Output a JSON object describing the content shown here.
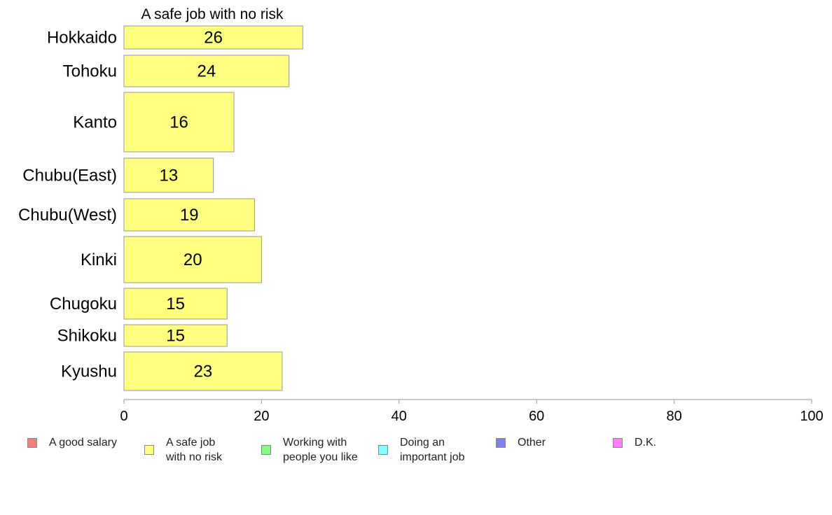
{
  "chart_data": {
    "type": "bar",
    "orientation": "horizontal",
    "title": "A safe job with no risk",
    "categories": [
      "Hokkaido",
      "Tohoku",
      "Kanto",
      "Chubu(East)",
      "Chubu(West)",
      "Kinki",
      "Chugoku",
      "Shikoku",
      "Kyushu"
    ],
    "series": [
      {
        "name": "A safe job with no risk",
        "values": [
          26,
          24,
          16,
          13,
          19,
          20,
          15,
          15,
          23
        ],
        "color": "#ffff80"
      }
    ],
    "xlim": [
      0,
      100
    ],
    "xticks": [
      0,
      20,
      40,
      60,
      80,
      100
    ],
    "grid": false,
    "legend_position": "bottom"
  },
  "legend": [
    {
      "label": "A good salary",
      "color": "#f08080"
    },
    {
      "label": "A safe job\nwith no risk",
      "color": "#ffff80"
    },
    {
      "label": "Working with\npeople you like",
      "color": "#80ff80"
    },
    {
      "label": "Doing an\nimportant job",
      "color": "#80ffff"
    },
    {
      "label": "Other",
      "color": "#8080f0"
    },
    {
      "label": "D.K.",
      "color": "#ff80ff"
    }
  ]
}
